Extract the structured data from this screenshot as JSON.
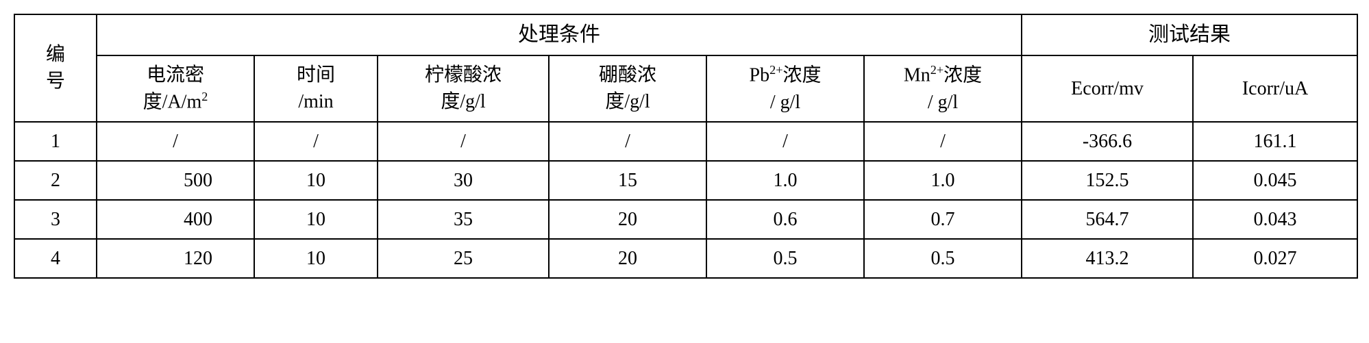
{
  "table": {
    "header": {
      "row_id": "编号",
      "group_conditions": "处理条件",
      "group_results": "测试结果",
      "sub": {
        "current_density_l1": "电流密",
        "current_density_l2": "度/A/m",
        "current_density_sup": "2",
        "time_l1": "时间",
        "time_l2": "/min",
        "citric_l1": "柠檬酸浓",
        "citric_l2": "度/g/l",
        "boric_l1": "硼酸浓",
        "boric_l2": "度/g/l",
        "pb_l1a": "Pb",
        "pb_l1_sup": "2+",
        "pb_l1b": "浓度",
        "pb_l2": "/ g/l",
        "mn_l1a": "Mn",
        "mn_l1_sup": "2+",
        "mn_l1b": "浓度",
        "mn_l2": "/ g/l",
        "ecorr": "Ecorr/mv",
        "icorr": "Icorr/uA"
      }
    },
    "rows": [
      {
        "id": "1",
        "cd": "/",
        "time": "/",
        "citric": "/",
        "boric": "/",
        "pb": "/",
        "mn": "/",
        "ecorr": "-366.6",
        "icorr": "161.1",
        "cd_align": "center"
      },
      {
        "id": "2",
        "cd": "500",
        "time": "10",
        "citric": "30",
        "boric": "15",
        "pb": "1.0",
        "mn": "1.0",
        "ecorr": "152.5",
        "icorr": "0.045",
        "cd_align": "right"
      },
      {
        "id": "3",
        "cd": "400",
        "time": "10",
        "citric": "35",
        "boric": "20",
        "pb": "0.6",
        "mn": "0.7",
        "ecorr": "564.7",
        "icorr": "0.043",
        "cd_align": "right"
      },
      {
        "id": "4",
        "cd": "120",
        "time": "10",
        "citric": "25",
        "boric": "20",
        "pb": "0.5",
        "mn": "0.5",
        "ecorr": "413.2",
        "icorr": "0.027",
        "cd_align": "right"
      }
    ],
    "col_widths": [
      "120",
      "230",
      "180",
      "250",
      "230",
      "230",
      "230",
      "250",
      "240"
    ]
  }
}
